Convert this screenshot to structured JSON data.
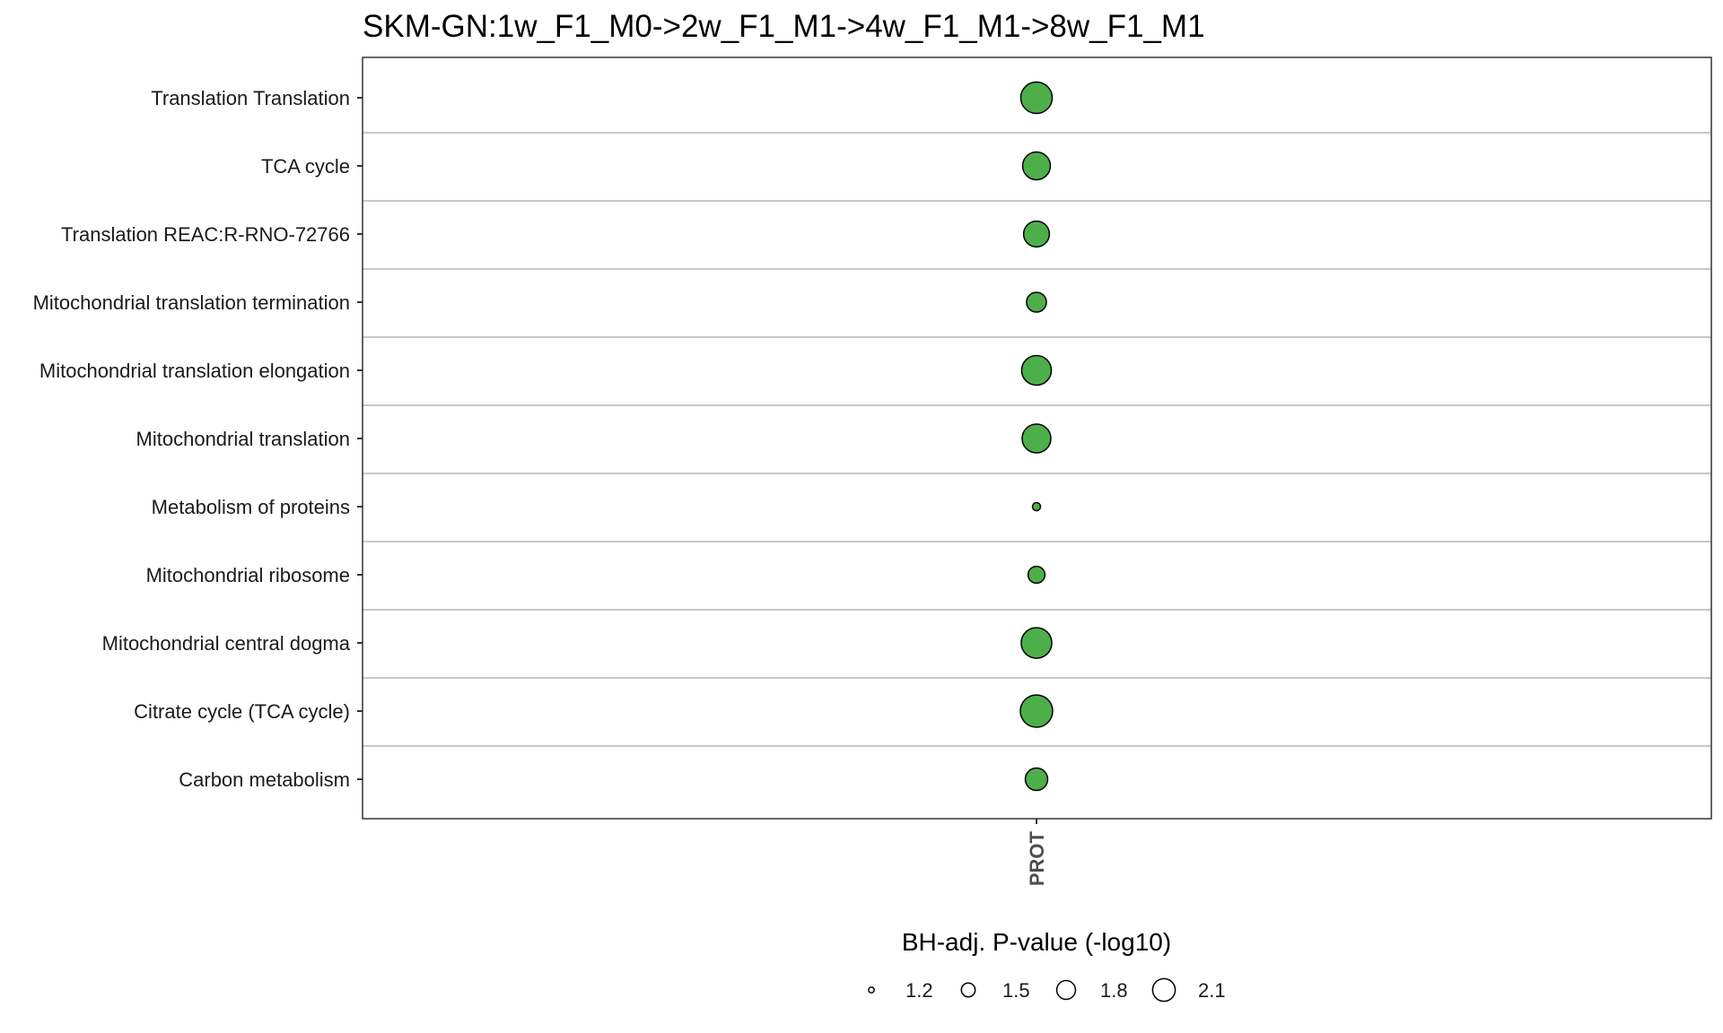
{
  "chart_data": {
    "type": "scatter",
    "title": "SKM-GN:1w_F1_M0->2w_F1_M1->4w_F1_M1->8w_F1_M1",
    "xlabel": "",
    "ylabel": "",
    "x_categories": [
      "PROT"
    ],
    "y_categories": [
      "Translation Translation",
      "TCA cycle",
      "Translation REAC:R-RNO-72766",
      "Mitochondrial translation termination",
      "Mitochondrial translation elongation",
      "Mitochondrial translation",
      "Metabolism of proteins",
      "Mitochondrial ribosome",
      "Mitochondrial central dogma",
      "Citrate cycle (TCA cycle)",
      "Carbon metabolism"
    ],
    "points": [
      {
        "x": "PROT",
        "y": "Translation Translation",
        "size": 2.05
      },
      {
        "x": "PROT",
        "y": "TCA cycle",
        "size": 1.85
      },
      {
        "x": "PROT",
        "y": "Translation REAC:R-RNO-72766",
        "size": 1.75
      },
      {
        "x": "PROT",
        "y": "Mitochondrial translation termination",
        "size": 1.5
      },
      {
        "x": "PROT",
        "y": "Mitochondrial translation elongation",
        "size": 1.95
      },
      {
        "x": "PROT",
        "y": "Mitochondrial translation",
        "size": 1.9
      },
      {
        "x": "PROT",
        "y": "Metabolism of proteins",
        "size": 1.2
      },
      {
        "x": "PROT",
        "y": "Mitochondrial ribosome",
        "size": 1.4
      },
      {
        "x": "PROT",
        "y": "Mitochondrial central dogma",
        "size": 2.0
      },
      {
        "x": "PROT",
        "y": "Citrate cycle (TCA cycle)",
        "size": 2.1
      },
      {
        "x": "PROT",
        "y": "Carbon metabolism",
        "size": 1.6
      }
    ],
    "point_color": "#4daf4a",
    "point_stroke": "#000000",
    "size_legend": {
      "title": "BH-adj. P-value (-log10)",
      "breaks": [
        1.2,
        1.5,
        1.8,
        2.1
      ],
      "labels": [
        "1.2",
        "1.5",
        "1.8",
        "2.1"
      ],
      "placement": "bottom"
    },
    "grid": "horizontal-major"
  }
}
